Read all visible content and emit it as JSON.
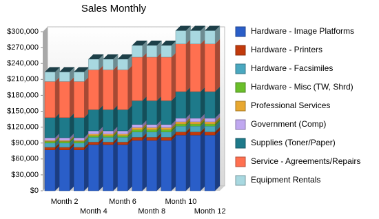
{
  "chart_data": {
    "type": "bar3d_stacked",
    "title": "Sales Monthly",
    "categories": [
      null,
      "Month 2",
      null,
      "Month 4",
      null,
      "Month 6",
      null,
      "Month 8",
      null,
      "Month 10",
      null,
      "Month 12"
    ],
    "series": [
      {
        "name": "Hardware - Image Platforms",
        "color": "#2a5ec8",
        "values": [
          77000,
          77000,
          77000,
          87000,
          87000,
          87000,
          95000,
          95000,
          95000,
          105000,
          105000,
          105000
        ]
      },
      {
        "name": "Hardware - Printers",
        "color": "#c23a0c",
        "values": [
          5000,
          5000,
          5000,
          5000,
          5000,
          5000,
          6000,
          6000,
          6000,
          6000,
          6000,
          6000
        ]
      },
      {
        "name": "Hardware - Facsimiles",
        "color": "#4aa8c0",
        "values": [
          8000,
          8000,
          8000,
          9000,
          9000,
          9000,
          10000,
          10000,
          10000,
          11000,
          11000,
          11000
        ]
      },
      {
        "name": "Hardware - Misc (TW, Shrd)",
        "color": "#6abf2a",
        "values": [
          3000,
          3000,
          3000,
          3000,
          3000,
          3000,
          4000,
          4000,
          4000,
          4000,
          4000,
          4000
        ]
      },
      {
        "name": "Professional Services",
        "color": "#e8a830",
        "values": [
          2000,
          2000,
          2000,
          3000,
          3000,
          3000,
          4000,
          4000,
          4000,
          4000,
          4000,
          4000
        ]
      },
      {
        "name": "Government (Comp)",
        "color": "#c0a8f0",
        "values": [
          5000,
          5000,
          5000,
          6000,
          6000,
          6000,
          6000,
          6000,
          6000,
          7000,
          7000,
          7000
        ]
      },
      {
        "name": "Supplies (Toner/Paper)",
        "color": "#1e7a8a",
        "values": [
          38000,
          38000,
          38000,
          40000,
          40000,
          40000,
          45000,
          45000,
          45000,
          50000,
          50000,
          50000
        ]
      },
      {
        "name": "Service - Agreements/Repairs",
        "color": "#ff7050",
        "values": [
          68000,
          68000,
          68000,
          75000,
          75000,
          75000,
          82000,
          82000,
          82000,
          90000,
          90000,
          90000
        ]
      },
      {
        "name": "Equipment Rentals",
        "color": "#a8d8e0",
        "values": [
          18000,
          18000,
          18000,
          20000,
          20000,
          20000,
          22000,
          22000,
          22000,
          25000,
          25000,
          25000
        ]
      }
    ],
    "ylim": [
      0,
      300000
    ],
    "yticks": [
      {
        "value": 0,
        "label": "$0"
      },
      {
        "value": 30000,
        "label": "$30,000"
      },
      {
        "value": 60000,
        "label": "$60,000"
      },
      {
        "value": 90000,
        "label": "$90,000"
      },
      {
        "value": 120000,
        "label": "$120,000"
      },
      {
        "value": 150000,
        "label": "$150,000"
      },
      {
        "value": 180000,
        "label": "$180,000"
      },
      {
        "value": 210000,
        "label": "$210,000"
      },
      {
        "value": 240000,
        "label": "$240,000"
      },
      {
        "value": 270000,
        "label": "$270,000"
      },
      {
        "value": 300000,
        "label": "$300,000"
      }
    ],
    "legend": "right"
  }
}
